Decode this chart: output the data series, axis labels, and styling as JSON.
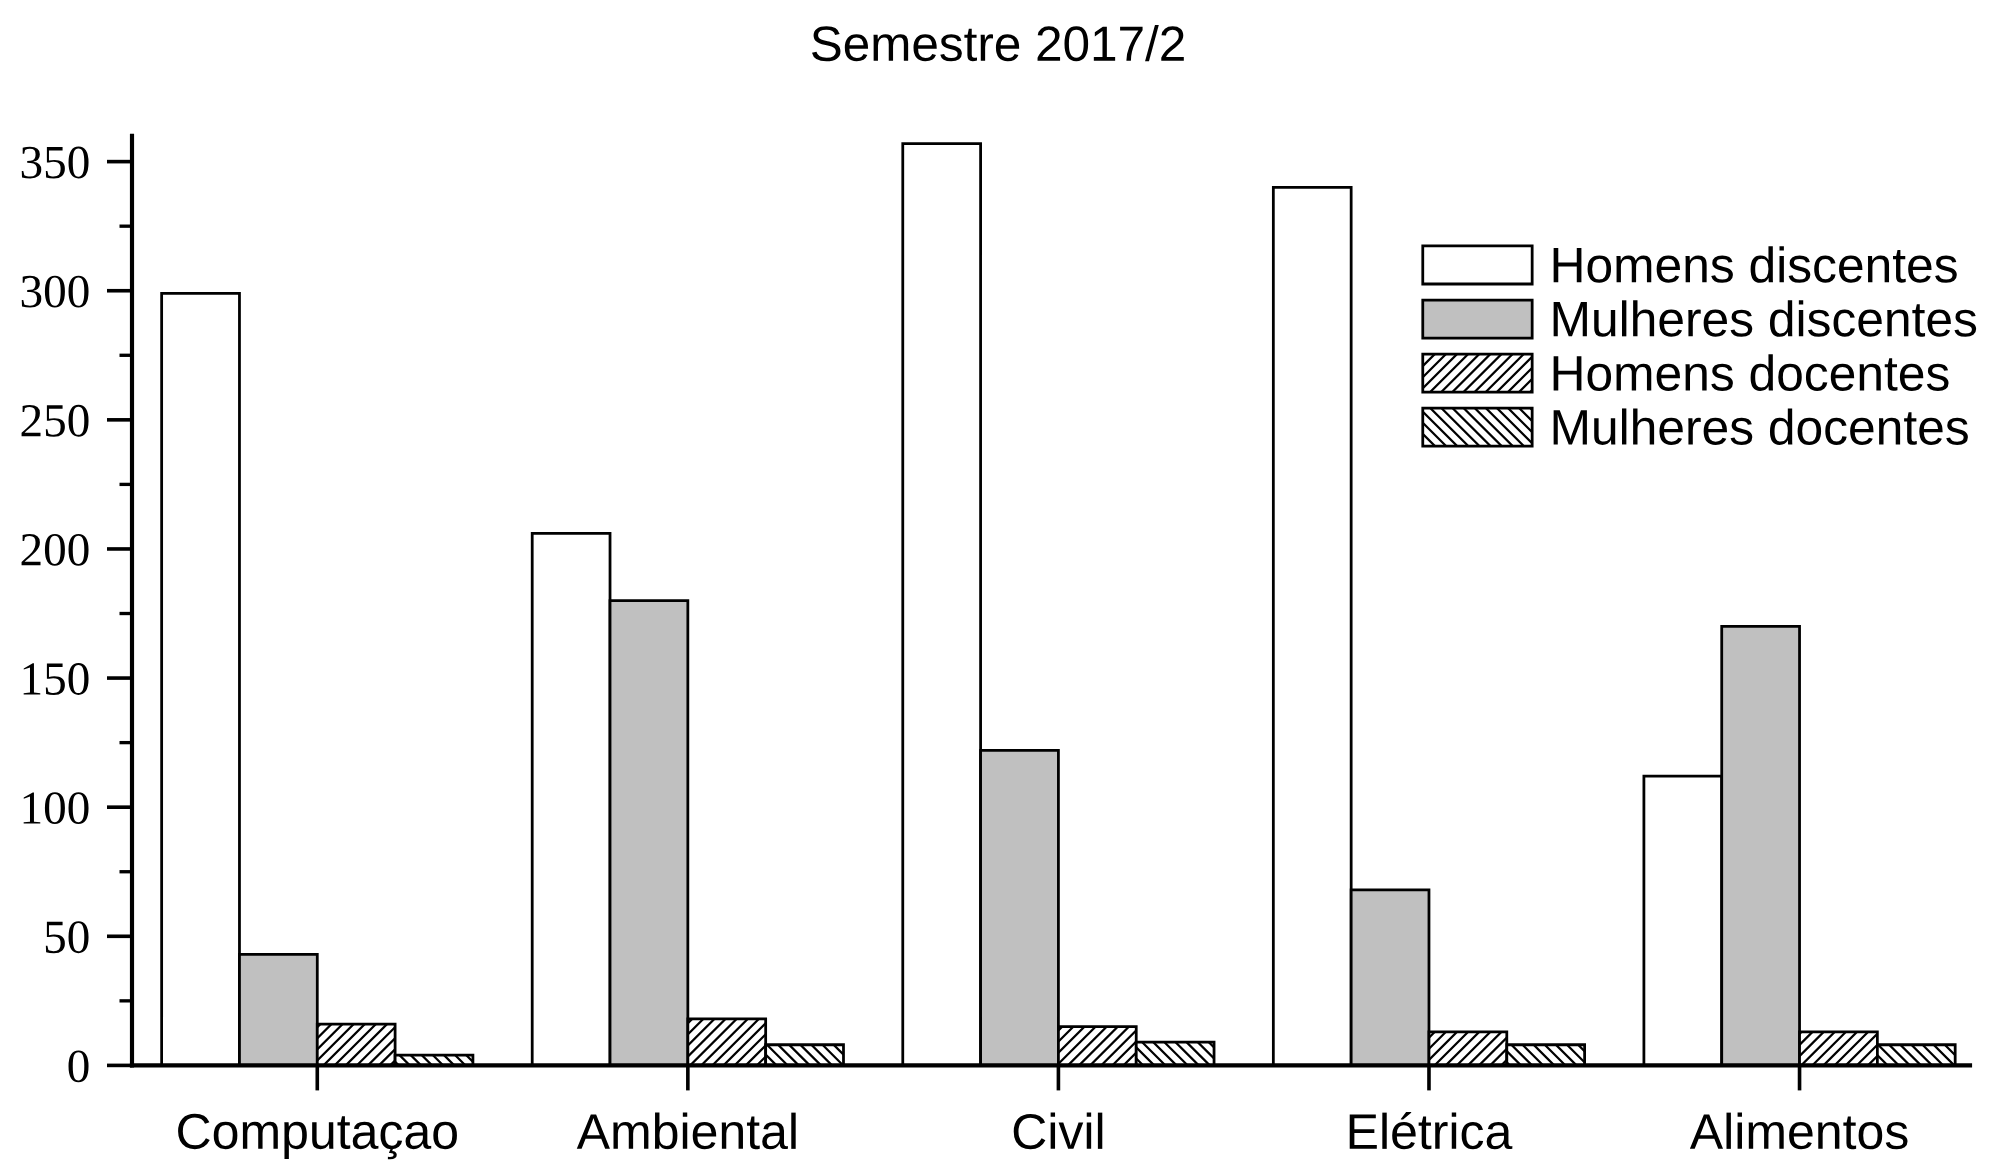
{
  "chart_data": {
    "type": "bar",
    "title": "Semestre 2017/2",
    "categories": [
      "Computaçao",
      "Ambiental",
      "Civil",
      "Elétrica",
      "Alimentos"
    ],
    "series": [
      {
        "name": "Homens discentes",
        "color": "#ffffff",
        "values": [
          299,
          206,
          357,
          340,
          112
        ]
      },
      {
        "name": "Mulheres discentes",
        "color": "#c0c0c0",
        "values": [
          43,
          180,
          122,
          68,
          170
        ]
      },
      {
        "name": "Homens docentes",
        "color": "#000000",
        "values": [
          16,
          18,
          15,
          13,
          13
        ]
      },
      {
        "name": "Mulheres docentes",
        "color": "#000000",
        "values": [
          4,
          8,
          9,
          8,
          8
        ]
      }
    ],
    "ylim": [
      0,
      360
    ],
    "yticks": [
      0,
      {
        "value": 25,
        "label": null
      },
      50,
      {
        "value": 75,
        "label": null
      },
      100,
      {
        "value": 125,
        "label": null
      },
      150,
      {
        "value": 175,
        "label": null
      },
      200,
      {
        "value": 225,
        "label": null
      },
      250,
      {
        "value": 275,
        "label": null
      },
      300,
      {
        "value": 325,
        "label": null
      },
      350
    ],
    "grid": false,
    "legend": "top right"
  }
}
